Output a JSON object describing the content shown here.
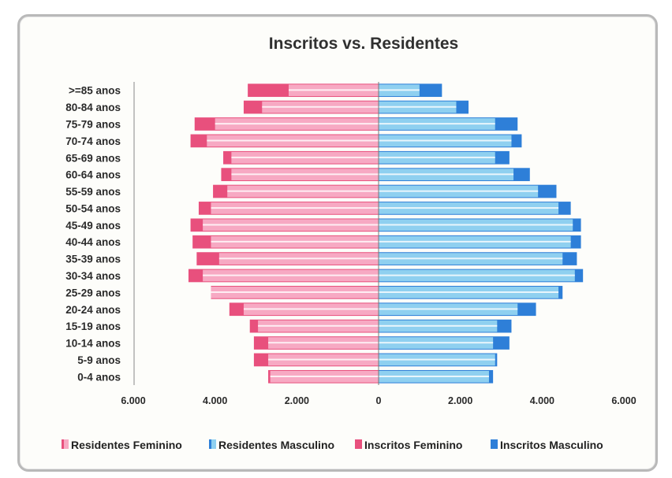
{
  "chart_data": {
    "type": "bar",
    "orientation": "horizontal",
    "title": "Inscritos vs. Residentes",
    "categories": [
      "0-4 anos",
      "5-9 anos",
      "10-14 anos",
      "15-19 anos",
      "20-24 anos",
      "25-29 anos",
      "30-34 anos",
      "35-39 anos",
      "40-44 anos",
      "45-49 anos",
      "50-54 anos",
      "55-59 anos",
      "60-64 anos",
      "65-69 anos",
      "70-74 anos",
      "75-79 anos",
      "80-84 anos",
      ">=85 anos"
    ],
    "series": [
      {
        "name": "Residentes Feminino",
        "values": [
          -2650,
          -2700,
          -2700,
          -2950,
          -3300,
          -4100,
          -4300,
          -3900,
          -4100,
          -4300,
          -4100,
          -3700,
          -3600,
          -3600,
          -4200,
          -4000,
          -2850,
          -2200
        ],
        "color": "#f7a9c3"
      },
      {
        "name": "Residentes Masculino",
        "values": [
          2700,
          2850,
          2800,
          2900,
          3400,
          4400,
          4800,
          4500,
          4700,
          4750,
          4400,
          3900,
          3300,
          2850,
          3250,
          2850,
          1900,
          1000
        ],
        "color": "#8fd0f0"
      },
      {
        "name": "Inscritos Feminino",
        "values": [
          -2700,
          -3050,
          -3050,
          -3150,
          -3650,
          -4100,
          -4650,
          -4450,
          -4550,
          -4600,
          -4400,
          -4050,
          -3850,
          -3800,
          -4600,
          -4500,
          -3300,
          -3200
        ],
        "color": "#e8507d"
      },
      {
        "name": "Inscritos Masculino",
        "values": [
          2800,
          2900,
          3200,
          3250,
          3850,
          4500,
          5000,
          4850,
          4950,
          4950,
          4700,
          4350,
          3700,
          3200,
          3500,
          3400,
          2200,
          1550
        ],
        "color": "#2e7fd8"
      }
    ],
    "xlim": [
      -6000,
      6000
    ],
    "xticks": [
      "6.000",
      "4.000",
      "2.000",
      "0",
      "2.000",
      "4.000",
      "6.000"
    ],
    "xtick_values": [
      -6000,
      -4000,
      -2000,
      0,
      2000,
      4000,
      6000
    ],
    "legend_position": "bottom"
  }
}
